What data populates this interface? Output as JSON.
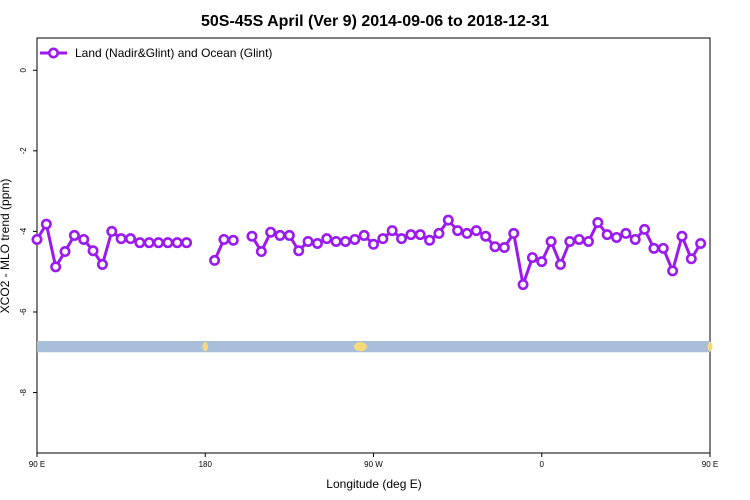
{
  "chart_data": {
    "type": "line",
    "title": "50S-45S April (Ver 9)   2014-09-06 to 2018-12-31",
    "xlabel": "Longitude (deg E)",
    "ylabel": "XCO2 - MLO trend (ppm)",
    "xlim": [
      90,
      450
    ],
    "ylim": [
      -9.5,
      0.8
    ],
    "x_ticks": [
      {
        "value": 90,
        "label": "90 E"
      },
      {
        "value": 180,
        "label": "180"
      },
      {
        "value": 270,
        "label": "90 W"
      },
      {
        "value": 360,
        "label": "0"
      },
      {
        "value": 450,
        "label": "90 E"
      },
      {
        "value": 540,
        "label": "180"
      }
    ],
    "y_ticks": [
      {
        "value": 0,
        "label": "0"
      },
      {
        "value": -2,
        "label": "-2"
      },
      {
        "value": -4,
        "label": "-4"
      },
      {
        "value": -6,
        "label": "-6"
      },
      {
        "value": -8,
        "label": "-8"
      }
    ],
    "legend": {
      "position": "top-left"
    },
    "map_strip": {
      "y_top": -6.72,
      "y_bottom": -7.0,
      "ocean_color": "#a9bfd9",
      "land_color": "#f5d97a"
    },
    "series": [
      {
        "name": "Land (Nadir&Glint) and Ocean (Glint)",
        "color": "#9b1bef",
        "segments": [
          {
            "x": [
              -175,
              -170,
              -165,
              -155,
              -150,
              -145,
              -140,
              -135,
              -130,
              -125,
              -120,
              -115,
              -110,
              -105,
              -100,
              -95,
              -90,
              -85,
              -80,
              -75,
              -70,
              -65,
              -60,
              -55,
              -50,
              -45,
              -40,
              -35,
              -30,
              -25,
              -20,
              -15,
              -10,
              -5,
              0,
              5,
              10,
              15,
              20,
              25,
              30,
              35,
              40,
              45,
              50,
              55,
              60,
              65,
              70,
              75,
              80,
              85,
              90,
              95,
              100,
              105,
              110,
              115,
              120,
              125,
              130,
              135,
              140,
              145,
              150,
              155,
              160,
              165,
              170
            ],
            "y": [
              -4.72,
              -4.2,
              -4.22,
              -4.12,
              -4.5,
              -4.02,
              -4.1,
              -4.1,
              -4.48,
              -4.25,
              -4.3,
              -4.18,
              -4.25,
              -4.25,
              -4.2,
              -4.1,
              -4.32,
              -4.18,
              -3.98,
              -4.18,
              -4.08,
              -4.08,
              -4.22,
              -4.05,
              -3.72,
              -3.98,
              -4.05,
              -3.98,
              -4.12,
              -4.38,
              -4.4,
              -4.05,
              -5.32,
              -4.65,
              -4.75,
              -4.25,
              -4.82,
              -4.25,
              -4.2,
              -4.25,
              -3.78,
              -4.08,
              -4.15,
              -4.05,
              -4.2,
              -3.95,
              -4.42,
              -4.42,
              -4.98,
              -4.12,
              -4.68,
              -4.3,
              -4.2,
              -3.82,
              -4.88,
              -4.5,
              -4.1,
              -4.2,
              -4.48,
              -4.82,
              -4.0,
              -4.18,
              -4.18,
              -4.28,
              -4.28,
              -4.28,
              -4.28,
              -4.28,
              -4.28
            ]
          }
        ]
      }
    ]
  }
}
